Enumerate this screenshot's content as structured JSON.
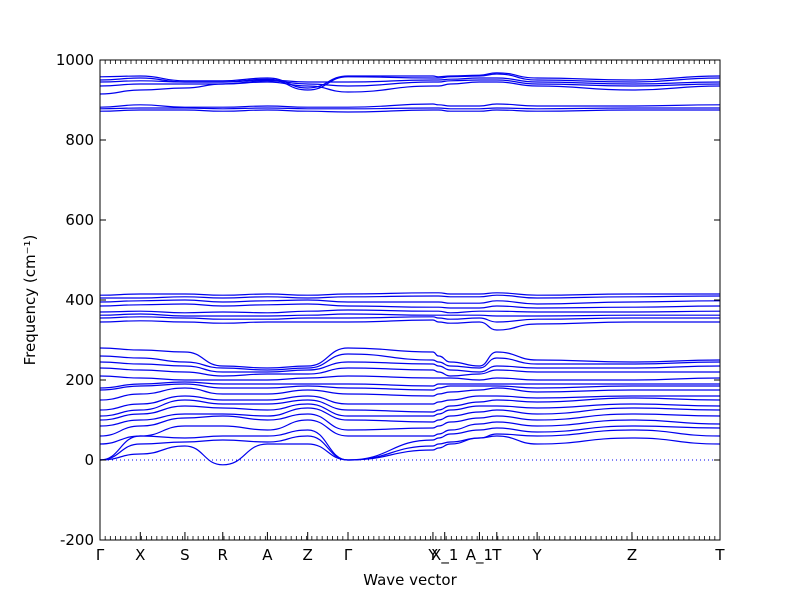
{
  "chart_data": {
    "type": "line",
    "xlabel": "Wave vector",
    "ylabel": "Frequency (cm⁻¹)",
    "ylim": [
      -200,
      1000
    ],
    "yticks": [
      -200,
      0,
      200,
      400,
      600,
      800,
      1000
    ],
    "grid": false,
    "zero_line": {
      "y": 0,
      "style": "dotted"
    },
    "x": [
      0.0,
      0.065,
      0.137,
      0.198,
      0.27,
      0.335,
      0.4,
      0.537,
      0.546,
      0.565,
      0.612,
      0.64,
      0.705,
      0.858,
      1.0
    ],
    "q_labels": [
      {
        "label": "Γ",
        "x": 0.0
      },
      {
        "label": "X",
        "x": 0.065
      },
      {
        "label": "S",
        "x": 0.137
      },
      {
        "label": "R",
        "x": 0.198
      },
      {
        "label": "A",
        "x": 0.27
      },
      {
        "label": "Z",
        "x": 0.335
      },
      {
        "label": "Γ",
        "x": 0.4
      },
      {
        "label": "Y",
        "x": 0.537
      },
      {
        "label": "X_1",
        "x": 0.556
      },
      {
        "label": "A_1",
        "x": 0.612
      },
      {
        "label": "T",
        "x": 0.64
      },
      {
        "label": "Y",
        "x": 0.705
      },
      {
        "label": "Z",
        "x": 0.858
      },
      {
        "label": "T",
        "x": 1.0
      }
    ],
    "series": [
      {
        "values": [
          0,
          15,
          35,
          -12,
          40,
          40,
          0,
          35,
          40,
          45,
          55,
          60,
          40,
          55,
          40
        ]
      },
      {
        "values": [
          0,
          40,
          45,
          50,
          45,
          60,
          0,
          25,
          30,
          40,
          55,
          65,
          60,
          75,
          60
        ]
      },
      {
        "values": [
          0,
          60,
          55,
          60,
          60,
          75,
          0,
          50,
          55,
          65,
          75,
          80,
          70,
          85,
          80
        ]
      },
      {
        "values": [
          40,
          60,
          85,
          85,
          75,
          100,
          60,
          60,
          65,
          75,
          90,
          95,
          85,
          100,
          90
        ]
      },
      {
        "values": [
          60,
          85,
          105,
          110,
          100,
          115,
          75,
          80,
          85,
          95,
          105,
          110,
          100,
          115,
          110
        ]
      },
      {
        "values": [
          85,
          100,
          115,
          115,
          110,
          130,
          100,
          95,
          100,
          110,
          120,
          125,
          115,
          130,
          125
        ]
      },
      {
        "values": [
          100,
          115,
          135,
          130,
          125,
          140,
          110,
          110,
          115,
          125,
          135,
          135,
          130,
          140,
          135
        ]
      },
      {
        "values": [
          110,
          125,
          150,
          140,
          140,
          150,
          125,
          120,
          125,
          135,
          145,
          150,
          145,
          155,
          150
        ]
      },
      {
        "values": [
          125,
          140,
          160,
          150,
          150,
          160,
          140,
          140,
          145,
          150,
          160,
          160,
          155,
          160,
          160
        ]
      },
      {
        "values": [
          150,
          165,
          180,
          165,
          165,
          175,
          165,
          160,
          165,
          170,
          175,
          180,
          170,
          175,
          175
        ]
      },
      {
        "values": [
          175,
          185,
          190,
          180,
          180,
          185,
          180,
          175,
          180,
          185,
          185,
          185,
          180,
          185,
          185
        ]
      },
      {
        "values": [
          180,
          190,
          195,
          190,
          190,
          190,
          190,
          185,
          190,
          190,
          190,
          190,
          190,
          190,
          190
        ]
      },
      {
        "values": [
          210,
          205,
          200,
          200,
          200,
          205,
          210,
          205,
          205,
          205,
          200,
          205,
          200,
          200,
          205
        ]
      },
      {
        "values": [
          230,
          225,
          220,
          210,
          215,
          215,
          230,
          225,
          220,
          210,
          215,
          225,
          220,
          220,
          220
        ]
      },
      {
        "values": [
          245,
          240,
          235,
          220,
          220,
          225,
          245,
          240,
          235,
          225,
          220,
          235,
          230,
          230,
          235
        ]
      },
      {
        "values": [
          260,
          255,
          245,
          230,
          225,
          230,
          265,
          250,
          245,
          235,
          230,
          255,
          240,
          240,
          245
        ]
      },
      {
        "values": [
          280,
          275,
          270,
          235,
          230,
          235,
          280,
          270,
          260,
          245,
          235,
          270,
          250,
          245,
          250
        ]
      },
      {
        "values": [
          345,
          348,
          345,
          342,
          345,
          345,
          345,
          350,
          345,
          342,
          345,
          325,
          340,
          345,
          345
        ]
      },
      {
        "values": [
          355,
          358,
          355,
          352,
          352,
          355,
          355,
          358,
          355,
          352,
          355,
          345,
          352,
          355,
          355
        ]
      },
      {
        "values": [
          362,
          365,
          360,
          360,
          360,
          362,
          365,
          362,
          362,
          362,
          362,
          360,
          360,
          362,
          362
        ]
      },
      {
        "values": [
          370,
          372,
          368,
          370,
          368,
          372,
          375,
          372,
          372,
          368,
          372,
          372,
          370,
          370,
          372
        ]
      },
      {
        "values": [
          385,
          388,
          390,
          385,
          388,
          390,
          385,
          382,
          382,
          380,
          380,
          385,
          380,
          382,
          385
        ]
      },
      {
        "values": [
          395,
          398,
          400,
          395,
          398,
          400,
          395,
          395,
          395,
          392,
          392,
          398,
          390,
          395,
          398
        ]
      },
      {
        "values": [
          405,
          405,
          408,
          405,
          408,
          405,
          408,
          410,
          410,
          408,
          408,
          412,
          405,
          408,
          410
        ]
      },
      {
        "values": [
          412,
          415,
          415,
          412,
          415,
          412,
          415,
          418,
          418,
          415,
          415,
          418,
          412,
          415,
          415
        ]
      },
      {
        "values": [
          872,
          875,
          875,
          872,
          875,
          872,
          870,
          875,
          875,
          872,
          872,
          875,
          872,
          875,
          875
        ]
      },
      {
        "values": [
          878,
          880,
          880,
          878,
          880,
          878,
          878,
          880,
          880,
          878,
          878,
          880,
          878,
          880,
          880
        ]
      },
      {
        "values": [
          882,
          888,
          882,
          882,
          885,
          882,
          882,
          890,
          888,
          885,
          885,
          890,
          885,
          885,
          888
        ]
      },
      {
        "values": [
          915,
          925,
          930,
          940,
          945,
          935,
          920,
          935,
          935,
          940,
          945,
          945,
          935,
          925,
          935
        ]
      },
      {
        "values": [
          935,
          940,
          940,
          940,
          948,
          940,
          935,
          945,
          945,
          948,
          950,
          950,
          940,
          935,
          940
        ]
      },
      {
        "values": [
          945,
          948,
          945,
          945,
          950,
          945,
          945,
          950,
          950,
          952,
          955,
          955,
          945,
          940,
          945
        ]
      },
      {
        "values": [
          950,
          955,
          945,
          945,
          952,
          925,
          958,
          955,
          955,
          958,
          960,
          965,
          950,
          945,
          955
        ]
      },
      {
        "values": [
          958,
          960,
          948,
          948,
          955,
          930,
          960,
          960,
          958,
          960,
          962,
          968,
          955,
          950,
          960
        ]
      }
    ]
  }
}
